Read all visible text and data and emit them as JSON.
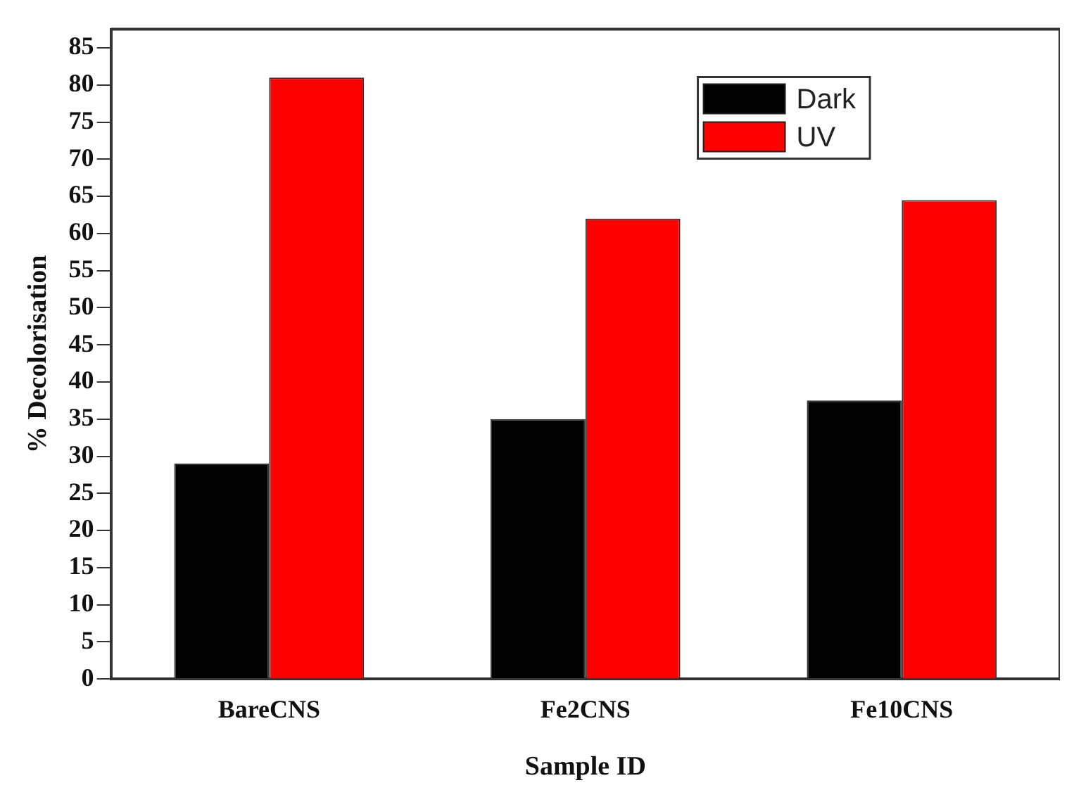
{
  "chart_data": {
    "type": "bar",
    "xlabel": "Sample ID",
    "ylabel": "% Decolorisation",
    "categories": [
      "BareCNS",
      "Fe2CNS",
      "Fe10CNS"
    ],
    "series": [
      {
        "name": "Dark",
        "color": "#000000",
        "values": [
          29,
          35,
          37.5
        ]
      },
      {
        "name": "UV",
        "color": "#ff0000",
        "values": [
          81,
          62,
          64.5
        ]
      }
    ],
    "ylim": [
      0,
      87.5
    ],
    "yticks": [
      0,
      5,
      10,
      15,
      20,
      25,
      30,
      35,
      40,
      45,
      50,
      55,
      60,
      65,
      70,
      75,
      80,
      85
    ],
    "grid": false,
    "legend": "top right"
  }
}
